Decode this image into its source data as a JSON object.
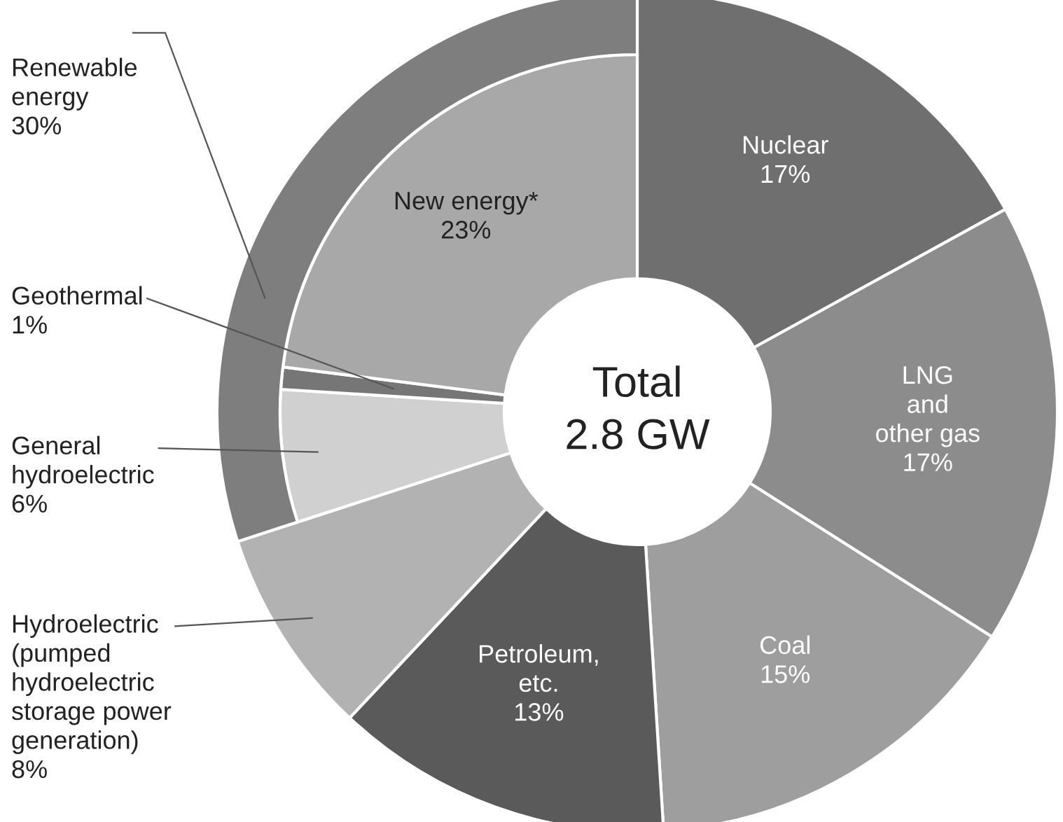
{
  "chart_data": {
    "type": "donut",
    "categories": [
      "Nuclear",
      "LNG\nand\nother gas",
      "Coal",
      "Petroleum,\netc.",
      "Hydroelectric\n(pumped\nhydroelectric\nstorage power\ngeneration)",
      "General\nhydroelectric",
      "Geothermal",
      "New energy*"
    ],
    "values": [
      17,
      17,
      15,
      13,
      8,
      6,
      1,
      23
    ],
    "value_labels": [
      "17%",
      "17%",
      "15%",
      "13%",
      "8%",
      "6%",
      "1%",
      "23%"
    ],
    "colors": [
      "#6f6f6f",
      "#8c8c8c",
      "#9e9e9e",
      "#5a5a5a",
      "#b2b2b2",
      "#d0d0d0",
      "#767676",
      "#a8a8a8"
    ],
    "annotations": [
      "Total\n2.8 GW",
      "Renewable\nenergy\n30%"
    ]
  }
}
